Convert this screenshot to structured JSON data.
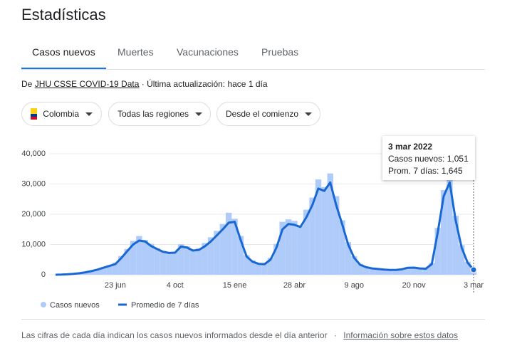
{
  "header": {
    "title": "Estadísticas"
  },
  "tabs": [
    "Casos nuevos",
    "Muertes",
    "Vacunaciones",
    "Pruebas"
  ],
  "source": {
    "prefix": "De",
    "link": "JHU CSSE COVID-19 Data",
    "updated": "· Última actualización: hace 1 día"
  },
  "filters": [
    "Colombia",
    "Todas las regiones",
    "Desde el comienzo"
  ],
  "chart_data": {
    "type": "bar-line",
    "categories": [
      null,
      null,
      null,
      null,
      null,
      null,
      null,
      null,
      null,
      null,
      "23 jun",
      null,
      null,
      null,
      null,
      null,
      null,
      null,
      null,
      null,
      "4 oct",
      null,
      null,
      null,
      null,
      null,
      null,
      null,
      null,
      null,
      "15 ene",
      null,
      null,
      null,
      null,
      null,
      null,
      null,
      null,
      null,
      "28 abr",
      null,
      null,
      null,
      null,
      null,
      null,
      null,
      null,
      null,
      "9 ago",
      null,
      null,
      null,
      null,
      null,
      null,
      null,
      null,
      null,
      "20 nov",
      null,
      null,
      null,
      null,
      null,
      null,
      null,
      null,
      null,
      "3 mar"
    ],
    "series": [
      {
        "name": "Casos nuevos",
        "color": "#aecbfa",
        "values": [
          0,
          80,
          200,
          350,
          600,
          900,
          1300,
          1900,
          2500,
          3200,
          4000,
          6200,
          8500,
          11200,
          12800,
          11500,
          10200,
          8800,
          7900,
          7000,
          7600,
          10100,
          9400,
          8300,
          8700,
          10500,
          12400,
          14500,
          16800,
          20500,
          18500,
          12800,
          6500,
          4700,
          3900,
          3700,
          5600,
          10200,
          17500,
          18300,
          17800,
          16200,
          21500,
          25500,
          31500,
          29000,
          33500,
          26000,
          18000,
          10800,
          6100,
          3600,
          2700,
          2300,
          2000,
          1800,
          1700,
          1700,
          1900,
          2600,
          2600,
          2300,
          2100,
          3900,
          15500,
          28000,
          31500,
          19500,
          9800,
          4300,
          1051
        ]
      },
      {
        "name": "Promedio de 7 días",
        "color": "#1967d2",
        "values": [
          0,
          50,
          150,
          300,
          500,
          800,
          1200,
          1700,
          2300,
          2900,
          3500,
          5500,
          7800,
          10000,
          11300,
          11000,
          9500,
          8500,
          7600,
          7200,
          7300,
          9300,
          9000,
          8000,
          8200,
          9400,
          11000,
          13000,
          15000,
          17200,
          17500,
          11500,
          6000,
          4300,
          3600,
          3500,
          5000,
          9000,
          15000,
          16800,
          16500,
          15800,
          19000,
          23000,
          28500,
          27700,
          30500,
          23000,
          16700,
          10000,
          5600,
          3300,
          2500,
          2100,
          1900,
          1700,
          1600,
          1600,
          1800,
          2300,
          2350,
          2100,
          2000,
          3500,
          14000,
          26000,
          30500,
          18000,
          9000,
          4000,
          1645
        ]
      }
    ],
    "ylim": [
      0,
      40000
    ],
    "yticks": [
      0,
      {
        "value": 10000,
        "label": "10,000"
      },
      {
        "value": 20000,
        "label": "20,000"
      },
      {
        "value": 30000,
        "label": "30,000"
      },
      {
        "value": 40000,
        "label": "40,000"
      }
    ],
    "grid": true,
    "tooltip": {
      "date": "3 mar 2022",
      "lines": [
        "Casos nuevos: 1,051",
        "Prom. 7 días: 1,645"
      ]
    }
  },
  "footer": {
    "note": "Las cifras de cada día indican los casos nuevos informados desde el día anterior",
    "link": "Información sobre estos datos"
  }
}
